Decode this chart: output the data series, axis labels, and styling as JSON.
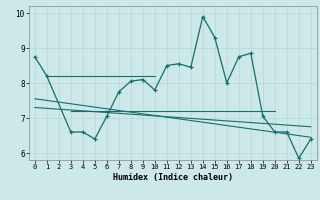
{
  "xlabel": "Humidex (Indice chaleur)",
  "xlim": [
    -0.5,
    23.5
  ],
  "ylim": [
    5.8,
    10.2
  ],
  "yticks": [
    6,
    7,
    8,
    9,
    10
  ],
  "xticks": [
    0,
    1,
    2,
    3,
    4,
    5,
    6,
    7,
    8,
    9,
    10,
    11,
    12,
    13,
    14,
    15,
    16,
    17,
    18,
    19,
    20,
    21,
    22,
    23
  ],
  "bg_color": "#cce8e8",
  "line_color": "#1a6b6b",
  "main_series": {
    "x": [
      0,
      1,
      3,
      4,
      5,
      6,
      7,
      8,
      9,
      10,
      11,
      12,
      13,
      14,
      15,
      16,
      17,
      18,
      19,
      20,
      21,
      22,
      23
    ],
    "y": [
      8.75,
      8.2,
      6.6,
      6.6,
      6.4,
      7.05,
      7.75,
      8.05,
      8.1,
      7.8,
      8.5,
      8.55,
      8.45,
      9.9,
      9.3,
      8.0,
      8.75,
      8.85,
      7.05,
      6.6,
      6.6,
      5.85,
      6.4
    ]
  },
  "flat_line1": {
    "x": [
      1,
      10
    ],
    "y": [
      8.2,
      8.2
    ]
  },
  "flat_line2": {
    "x": [
      3,
      20
    ],
    "y": [
      7.2,
      7.2
    ]
  },
  "slope_line1": {
    "x": [
      0,
      23
    ],
    "y": [
      7.3,
      6.75
    ]
  },
  "slope_line2": {
    "x": [
      0,
      23
    ],
    "y": [
      7.55,
      6.45
    ]
  }
}
